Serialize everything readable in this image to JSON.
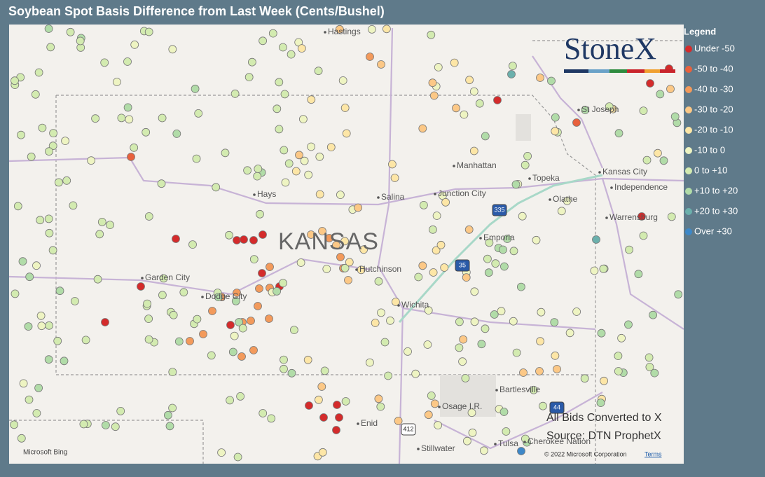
{
  "title": "Soybean Spot Basis Difference from Last Week (Cents/Bushel)",
  "legend": {
    "title": "Legend",
    "items": [
      {
        "label": "Under -50",
        "color": "#d42b2b"
      },
      {
        "label": "-50 to -40",
        "color": "#e8613d"
      },
      {
        "label": "-40 to -30",
        "color": "#f39a5b"
      },
      {
        "label": "-30 to -20",
        "color": "#fcc886"
      },
      {
        "label": "-20 to -10",
        "color": "#fde6a6"
      },
      {
        "label": "-10 to 0",
        "color": "#eef4c2"
      },
      {
        "label": "0 to +10",
        "color": "#d3ebb0"
      },
      {
        "label": "+10 to +20",
        "color": "#b1dca8"
      },
      {
        "label": "+20 to +30",
        "color": "#6bb0ac"
      },
      {
        "label": "Over +30",
        "color": "#3d88c8"
      }
    ]
  },
  "logo": "StoneX",
  "map_labels": {
    "state": "KANSAS",
    "places": [
      "Hastings",
      "St Joseph",
      "Manhattan",
      "Topeka",
      "Kansas City",
      "Independence",
      "Hays",
      "Salina",
      "Junction City",
      "Olathe",
      "Warrensburg",
      "Emporia",
      "Hutchinson",
      "Garden City",
      "Dodge City",
      "Wichita",
      "Bartlesville",
      "Osage I.R.",
      "Enid",
      "Stillwater",
      "Tulsa",
      "Cherokee Nation"
    ],
    "shields": [
      "335",
      "35",
      "44",
      "412"
    ]
  },
  "annotation": [
    "All Bids Converted to X",
    "Source: DTN ProphetX"
  ],
  "footer": {
    "provider": "Microsoft Bing",
    "copyright": "© 2022 Microsoft Corporation",
    "terms": "Terms"
  }
}
